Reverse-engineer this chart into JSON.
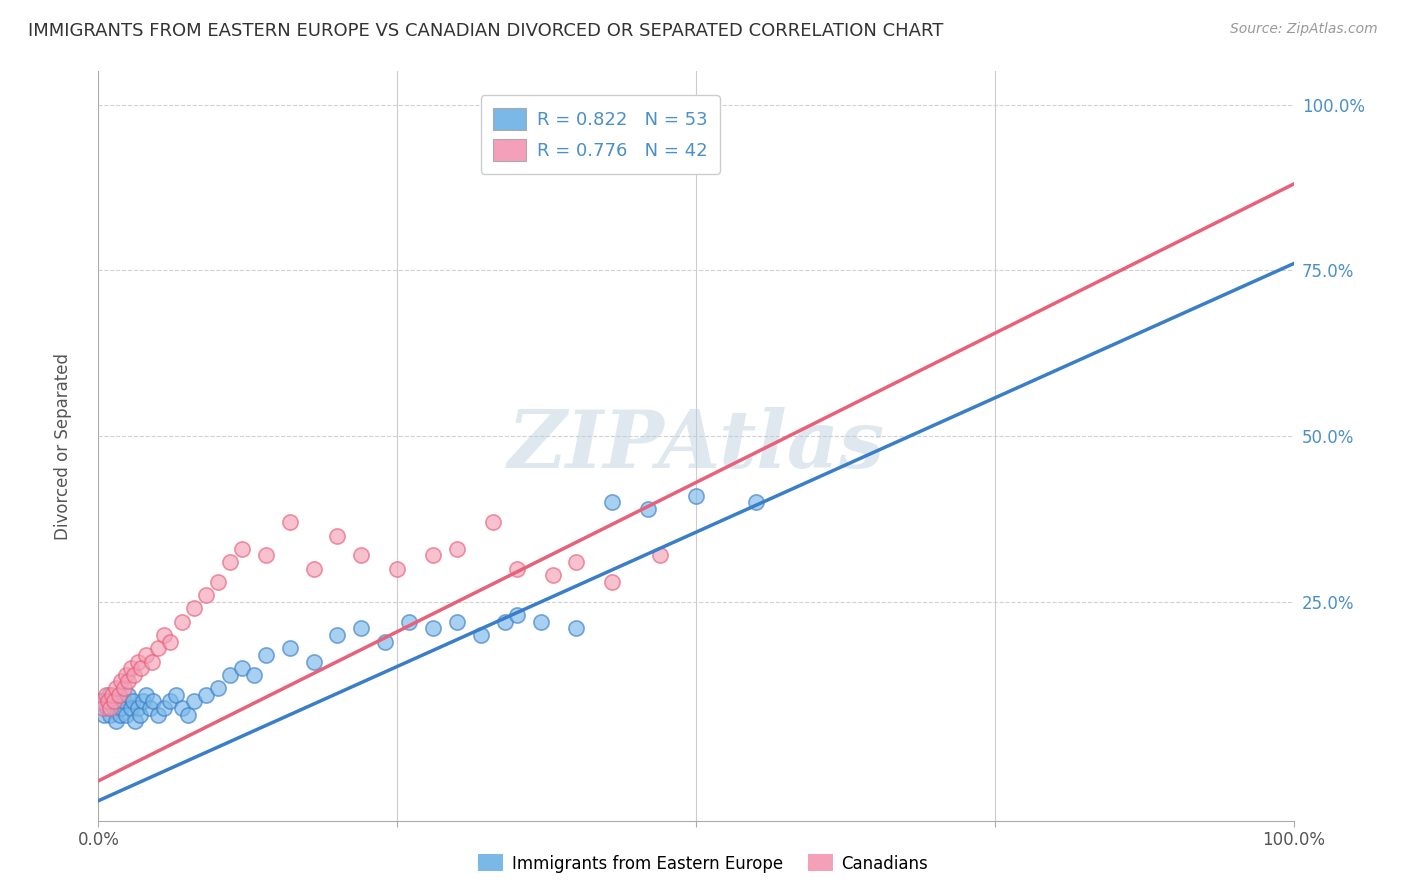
{
  "title": "IMMIGRANTS FROM EASTERN EUROPE VS CANADIAN DIVORCED OR SEPARATED CORRELATION CHART",
  "source": "Source: ZipAtlas.com",
  "ylabel": "Divorced or Separated",
  "xlim": [
    0,
    100
  ],
  "ylim": [
    -8,
    105
  ],
  "blue_color": "#7ab8e8",
  "pink_color": "#f4a0b8",
  "blue_line_color": "#3a7ec8",
  "pink_line_color": "#e8607a",
  "legend_text_color": "#4a90c8",
  "R_blue": 0.822,
  "N_blue": 53,
  "R_pink": 0.776,
  "N_pink": 42,
  "watermark": "ZIPAtlas",
  "blue_line_x0": 0,
  "blue_line_y0": -5,
  "blue_line_x1": 100,
  "blue_line_y1": 76,
  "pink_line_x0": 0,
  "pink_line_y0": -2,
  "pink_line_x1": 100,
  "pink_line_y1": 88,
  "blue_scatter_x": [
    0.3,
    0.5,
    0.7,
    0.9,
    1.0,
    1.2,
    1.3,
    1.5,
    1.6,
    1.8,
    1.9,
    2.1,
    2.3,
    2.5,
    2.7,
    2.9,
    3.1,
    3.3,
    3.5,
    3.7,
    4.0,
    4.3,
    4.6,
    5.0,
    5.5,
    6.0,
    6.5,
    7.0,
    7.5,
    8.0,
    9.0,
    10.0,
    11.0,
    12.0,
    13.0,
    14.0,
    16.0,
    18.0,
    20.0,
    22.0,
    24.0,
    26.0,
    28.0,
    30.0,
    32.0,
    34.0,
    35.0,
    37.0,
    40.0,
    43.0,
    46.0,
    50.0,
    55.0
  ],
  "blue_scatter_y": [
    10,
    8,
    9,
    11,
    8,
    10,
    9,
    7,
    10,
    8,
    9,
    10,
    8,
    11,
    9,
    10,
    7,
    9,
    8,
    10,
    11,
    9,
    10,
    8,
    9,
    10,
    11,
    9,
    8,
    10,
    11,
    12,
    14,
    15,
    14,
    17,
    18,
    16,
    20,
    21,
    19,
    22,
    21,
    22,
    20,
    22,
    23,
    22,
    21,
    40,
    39,
    41,
    40
  ],
  "pink_scatter_x": [
    0.2,
    0.4,
    0.6,
    0.8,
    1.0,
    1.1,
    1.3,
    1.5,
    1.7,
    1.9,
    2.1,
    2.3,
    2.5,
    2.7,
    3.0,
    3.3,
    3.6,
    4.0,
    4.5,
    5.0,
    5.5,
    6.0,
    7.0,
    8.0,
    9.0,
    10.0,
    11.0,
    12.0,
    14.0,
    16.0,
    18.0,
    20.0,
    22.0,
    25.0,
    28.0,
    30.0,
    33.0,
    35.0,
    38.0,
    40.0,
    43.0,
    47.0
  ],
  "pink_scatter_y": [
    10,
    9,
    11,
    10,
    9,
    11,
    10,
    12,
    11,
    13,
    12,
    14,
    13,
    15,
    14,
    16,
    15,
    17,
    16,
    18,
    20,
    19,
    22,
    24,
    26,
    28,
    31,
    33,
    32,
    37,
    30,
    35,
    32,
    30,
    32,
    33,
    37,
    30,
    29,
    31,
    28,
    32
  ]
}
